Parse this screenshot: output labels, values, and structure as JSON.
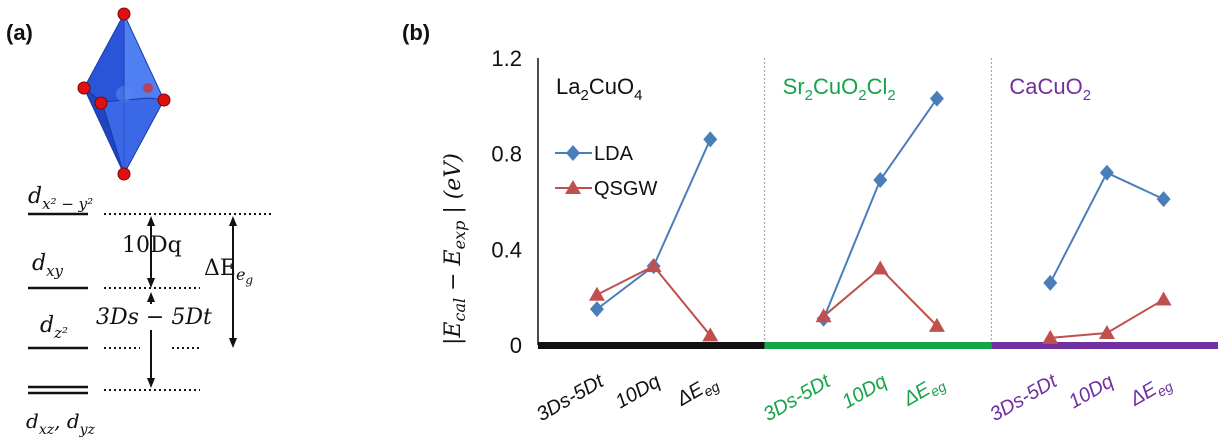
{
  "panel_a": {
    "label": "(a)",
    "levels": {
      "x2y2": {
        "base": "d",
        "sub": "x² − y²"
      },
      "xy": {
        "base": "d",
        "sub": "xy"
      },
      "z2": {
        "base": "d",
        "sub": "z²"
      },
      "xzyz": {
        "base": "d",
        "sub1": "xz",
        "sep": ", ",
        "base2": "d",
        "sub2": "yz"
      }
    },
    "arrow_10dq": "10Dq",
    "arrow_3ds": "3Ds − 5Dt",
    "arrow_deg": {
      "base": "ΔE",
      "sub": "e",
      "subsub": "g"
    }
  },
  "panel_b": {
    "label": "(b)",
    "ylabel": {
      "open": "|E",
      "sub1": "cal",
      "mid": " − E",
      "sub2": "exp",
      "close": " | (eV)"
    }
  },
  "chart_data": {
    "type": "line",
    "ylim": [
      0,
      1.2
    ],
    "yticks": [
      "0",
      "0.4",
      "0.8",
      "1.2"
    ],
    "grid": false,
    "legend_position": "left inside first group",
    "groups": [
      {
        "compound": [
          "La",
          "2",
          "CuO",
          "4"
        ],
        "color": "#111111",
        "categories": [
          "3Ds-5Dt",
          "10Dq",
          "ΔEeg"
        ]
      },
      {
        "compound": [
          "Sr",
          "2",
          "CuO",
          "2",
          "Cl",
          "2"
        ],
        "color": "#16a34a",
        "categories": [
          "3Ds-5Dt",
          "10Dq",
          "ΔEeg"
        ]
      },
      {
        "compound": [
          "CaCuO",
          "2"
        ],
        "color": "#7030a0",
        "categories": [
          "3Ds-5Dt",
          "10Dq",
          "ΔEeg"
        ]
      }
    ],
    "series": [
      {
        "name": "LDA",
        "color": "#4a7ebb",
        "marker": "diamond",
        "values": [
          [
            0.15,
            0.33,
            0.86
          ],
          [
            0.11,
            0.69,
            1.03
          ],
          [
            0.26,
            0.72,
            0.61
          ]
        ]
      },
      {
        "name": "QSGW",
        "color": "#c0504d",
        "marker": "triangle",
        "values": [
          [
            0.21,
            0.33,
            0.04
          ],
          [
            0.12,
            0.32,
            0.08
          ],
          [
            0.03,
            0.05,
            0.19
          ]
        ]
      }
    ]
  }
}
